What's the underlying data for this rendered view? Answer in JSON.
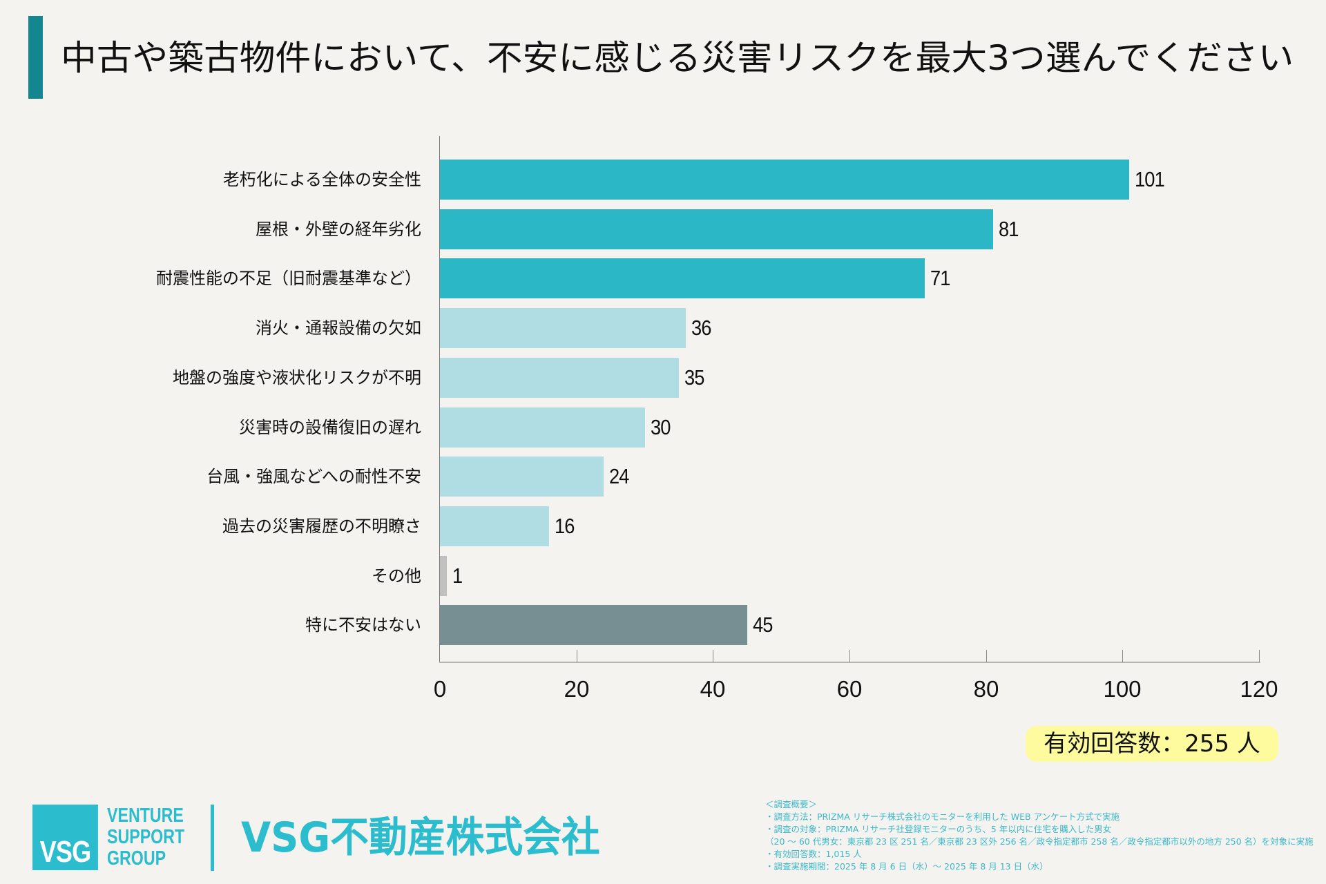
{
  "header": {
    "title": "中古や築古物件において、不安に感じる災害リスクを最大3つ選んでください",
    "accent_color": "#13868f"
  },
  "chart_data": {
    "type": "bar",
    "orientation": "horizontal",
    "title": "中古や築古物件において、不安に感じる災害リスクを最大3つ選んでください",
    "categories": [
      "老朽化による全体の安全性",
      "屋根・外壁の経年劣化",
      "耐震性能の不足（旧耐震基準など）",
      "消火・通報設備の欠如",
      "地盤の強度や液状化リスクが不明",
      "災害時の設備復旧の遅れ",
      "台風・強風などへの耐性不安",
      "過去の災害履歴の不明瞭さ",
      "その他",
      "特に不安はない"
    ],
    "values": [
      101,
      81,
      71,
      36,
      35,
      30,
      24,
      16,
      1,
      45
    ],
    "value_labels": [
      "101",
      "81",
      "71",
      "36",
      "35",
      "30",
      "24",
      "16",
      "1",
      "45"
    ],
    "colors": [
      "#2bb7c6",
      "#2bb7c6",
      "#2bb7c6",
      "#b0dde3",
      "#b0dde3",
      "#b0dde3",
      "#b0dde3",
      "#b0dde3",
      "#c0c0c0",
      "#778f92"
    ],
    "xlabel": "",
    "ylabel": "",
    "xlim": [
      0,
      120
    ],
    "xticks": [
      0,
      20,
      40,
      60,
      80,
      100,
      120
    ],
    "xtick_labels": [
      "0",
      "20",
      "40",
      "60",
      "80",
      "100",
      "120"
    ],
    "grid": false,
    "legend": "none"
  },
  "summary": {
    "effective_responses": "有効回答数：255 人",
    "box_color": "#fdfb9e"
  },
  "brand": {
    "logo_mark": "VSG",
    "logo_words": [
      "VENTURE",
      "SUPPORT",
      "GROUP"
    ],
    "company_name": "VSG不動産株式会社",
    "brand_color": "#2bbccd"
  },
  "survey": {
    "heading": "＜調査概要＞",
    "lines": [
      "・調査方法：PRIZMA リサーチ株式会社のモニターを利用した WEB アンケート方式で実施",
      "・調査の対象：PRIZMA リサーチ社登録モニターのうち、5 年以内に住宅を購入した男女",
      "（20 ～ 60 代男女：東京都 23 区 251 名／東京都 23 区外 256 名／政令指定都市 258 名／政令指定都市以外の地方 250 名）を対象に実施",
      "・有効回答数：1,015 人",
      "・調査実施期間：2025 年 8 月 6 日（水）～ 2025 年 8 月 13 日（水）"
    ]
  }
}
